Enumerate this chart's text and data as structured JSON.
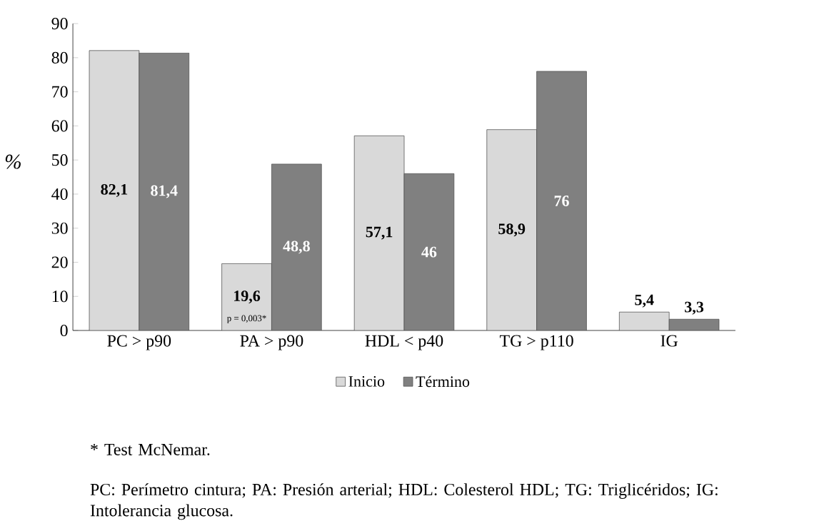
{
  "chart_data": {
    "type": "bar",
    "ylabel": "%",
    "categories": [
      "PC > p90",
      "PA > p90",
      "HDL < p40",
      "TG > p110",
      "IG"
    ],
    "series": [
      {
        "name": "Inicio",
        "color": "#d9d9d9",
        "values": [
          82.1,
          19.6,
          57.1,
          58.9,
          5.4
        ],
        "value_labels": [
          "82,1",
          "19,6",
          "57,1",
          "58,9",
          "5,4"
        ]
      },
      {
        "name": "Término",
        "color": "#808080",
        "values": [
          81.4,
          48.8,
          46,
          76,
          3.3
        ],
        "value_labels": [
          "81,4",
          "48,8",
          "46",
          "76",
          "3,3"
        ]
      }
    ],
    "ylim": [
      0,
      90
    ],
    "yticks": [
      0,
      10,
      20,
      30,
      40,
      50,
      60,
      70,
      80,
      90
    ],
    "legend": "bottom",
    "annotations": [
      {
        "text": "p = 0,003*",
        "x": "PA > p90"
      },
      "* Test McNemar.",
      "PC: Perímetro cintura; PA: Presión arterial; HDL: Colesterol HDL; TG: Triglicéridos; IG: Intolerancia glucosa."
    ]
  }
}
